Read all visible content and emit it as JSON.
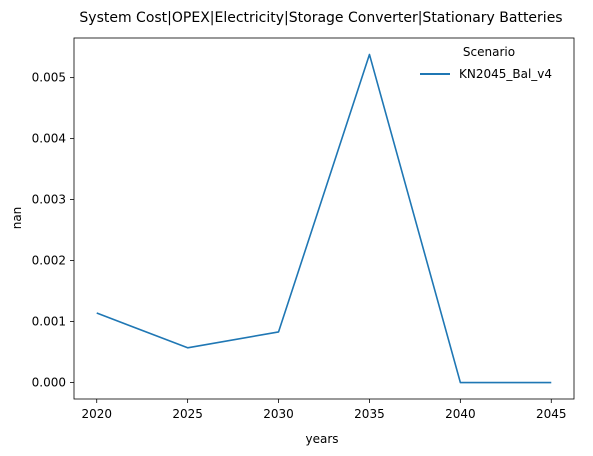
{
  "chart_data": {
    "type": "line",
    "title": "System Cost|OPEX|Electricity|Storage Converter|Stationary Batteries",
    "xlabel": "years",
    "ylabel": "nan",
    "x": [
      2020,
      2025,
      2030,
      2035,
      2040,
      2045
    ],
    "xticks": [
      "2020",
      "2025",
      "2030",
      "2035",
      "2040",
      "2045"
    ],
    "yticks": [
      "0.000",
      "0.001",
      "0.002",
      "0.003",
      "0.004",
      "0.005"
    ],
    "ylim": [
      -0.00027,
      0.00565
    ],
    "xlim": [
      2018.75,
      2046.25
    ],
    "grid": false,
    "legend": {
      "title": "Scenario",
      "placement": "top-right"
    },
    "series": [
      {
        "name": "KN2045_Bal_v4",
        "color": "#1f77b4",
        "values": [
          0.00114,
          0.00057,
          0.00083,
          0.00538,
          0.0,
          0.0
        ]
      }
    ]
  }
}
